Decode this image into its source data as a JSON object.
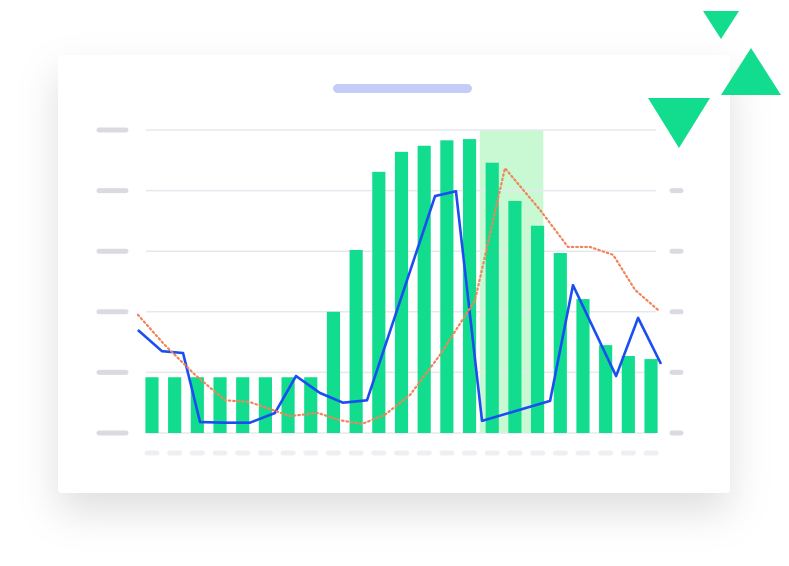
{
  "chart_data": {
    "type": "bar",
    "categories": [
      null,
      null,
      null,
      null,
      null,
      null,
      null,
      null,
      null,
      null,
      null,
      null,
      null,
      null,
      null,
      null,
      null,
      null,
      null,
      null,
      null,
      null,
      null
    ],
    "xlim": [
      -0.2,
      23.2
    ],
    "ylim": [
      0,
      5
    ],
    "yticks": [
      0,
      1,
      2,
      3,
      4,
      5
    ],
    "grid": true,
    "highlight_x": [
      14.95,
      17.75
    ],
    "highlight_color": "#c8f9d2",
    "series": [
      {
        "type": "bar",
        "color": "#12dc8e",
        "values": [
          0.92,
          0.92,
          0.92,
          0.92,
          0.92,
          0.92,
          0.92,
          0.92,
          2.0,
          3.02,
          4.31,
          4.64,
          4.74,
          4.83,
          4.85,
          4.46,
          3.83,
          3.42,
          2.97,
          2.21,
          1.45,
          1.27,
          1.22
        ]
      },
      {
        "type": "line",
        "color": "#1a4ef0",
        "style": "solid",
        "x": [
          -0.12,
          0.94,
          1.87,
          2.62,
          3.72,
          4.82,
          5.92,
          6.85,
          7.91,
          8.92,
          9.98,
          12.98,
          13.9,
          15.05,
          18.05,
          19.06,
          20.96,
          21.93,
          22.94
        ],
        "values": [
          1.7,
          1.35,
          1.32,
          0.18,
          0.17,
          0.17,
          0.33,
          0.94,
          0.66,
          0.5,
          0.54,
          3.91,
          3.99,
          0.2,
          0.53,
          2.44,
          0.94,
          1.9,
          1.14
        ]
      },
      {
        "type": "line",
        "color": "#f0845a",
        "style": "dotted",
        "x": [
          -0.12,
          1.07,
          2.4,
          3.72,
          4.82,
          6.58,
          7.82,
          8.79,
          9.76,
          10.77,
          11.88,
          13.2,
          14.74,
          16.06,
          17.61,
          18.84,
          19.81,
          20.83,
          21.8,
          22.81
        ],
        "values": [
          1.95,
          1.45,
          0.96,
          0.54,
          0.51,
          0.28,
          0.33,
          0.21,
          0.15,
          0.3,
          0.63,
          1.29,
          2.19,
          4.37,
          3.68,
          3.07,
          3.07,
          2.94,
          2.36,
          2.03
        ]
      }
    ]
  }
}
